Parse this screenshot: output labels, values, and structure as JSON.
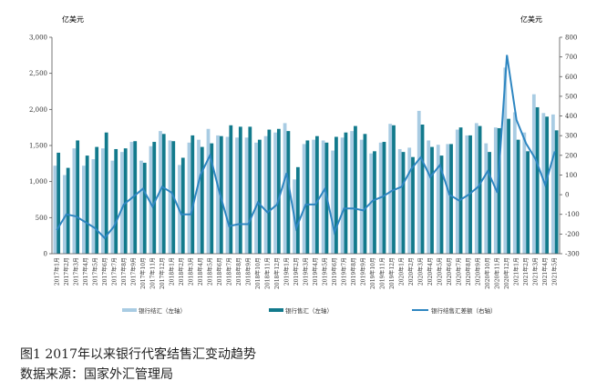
{
  "figure": {
    "caption_line1": "图1   2017年以来银行代客结售汇变动趋势",
    "caption_line2": "数据来源：国家外汇管理局"
  },
  "chart_data": {
    "type": "bar",
    "left_unit": "亿美元",
    "right_unit": "亿美元",
    "ylim_left": [
      0,
      3000
    ],
    "left_ticks": [
      "0",
      "500",
      "1,000",
      "1,500",
      "2,000",
      "2,500",
      "3,000"
    ],
    "ylim_right": [
      -300,
      800
    ],
    "right_ticks": [
      "-300",
      "-200",
      "-100",
      "0",
      "100",
      "200",
      "300",
      "400",
      "500",
      "600",
      "700",
      "800"
    ],
    "grid": false,
    "legend_position": "bottom",
    "colors": {
      "settlement": "#a9cce3",
      "sales": "#127a8c",
      "net": "#2e86c1"
    },
    "categories": [
      "2017年1月",
      "2017年2月",
      "2017年3月",
      "2017年4月",
      "2017年5月",
      "2017年6月",
      "2017年7月",
      "2017年8月",
      "2017年9月",
      "2017年10月",
      "2017年11月",
      "2017年12月",
      "2018年1月",
      "2018年2月",
      "2018年3月",
      "2018年4月",
      "2018年5月",
      "2018年6月",
      "2018年7月",
      "2018年8月",
      "2018年9月",
      "2018年10月",
      "2018年11月",
      "2018年12月",
      "2019年1月",
      "2019年2月",
      "2019年3月",
      "2019年4月",
      "2019年5月",
      "2019年6月",
      "2019年7月",
      "2019年8月",
      "2019年9月",
      "2019年10月",
      "2019年11月",
      "2019年12月",
      "2020年1月",
      "2020年2月",
      "2020年3月",
      "2020年4月",
      "2020年5月",
      "2020年6月",
      "2020年7月",
      "2020年8月",
      "2020年9月",
      "2020年10月",
      "2020年11月",
      "2020年12月",
      "2021年1月",
      "2021年2月",
      "2021年3月",
      "2021年4月",
      "2021年5月"
    ],
    "series": [
      {
        "name": "银行结汇（左轴）",
        "axis": "left",
        "values": [
          1220,
          1090,
          1460,
          1220,
          1310,
          1460,
          1290,
          1410,
          1550,
          1290,
          1490,
          1700,
          1570,
          1230,
          1540,
          1580,
          1730,
          1640,
          1620,
          1610,
          1610,
          1540,
          1630,
          1680,
          1810,
          1030,
          1520,
          1580,
          1570,
          1430,
          1610,
          1700,
          1580,
          1390,
          1540,
          1800,
          1450,
          1470,
          1980,
          1570,
          1510,
          1520,
          1720,
          1640,
          1810,
          1530,
          1750,
          2580,
          1960,
          1680,
          2210,
          1950,
          1930
        ]
      },
      {
        "name": "银行售汇（左轴）",
        "axis": "left",
        "values": [
          1400,
          1190,
          1570,
          1360,
          1480,
          1680,
          1450,
          1460,
          1560,
          1260,
          1550,
          1660,
          1560,
          1330,
          1640,
          1480,
          1530,
          1630,
          1780,
          1760,
          1760,
          1580,
          1720,
          1730,
          1700,
          1200,
          1570,
          1630,
          1540,
          1620,
          1680,
          1770,
          1660,
          1420,
          1550,
          1780,
          1410,
          1340,
          1790,
          1480,
          1360,
          1520,
          1750,
          1640,
          1770,
          1410,
          1740,
          1870,
          1580,
          1420,
          2030,
          1900,
          1710
        ]
      },
      {
        "name": "银行结售汇差额（右轴）",
        "axis": "right",
        "values": [
          -180,
          -100,
          -110,
          -140,
          -170,
          -220,
          -160,
          -50,
          -10,
          30,
          -60,
          40,
          10,
          -100,
          -100,
          100,
          200,
          10,
          -160,
          -150,
          -150,
          -40,
          -90,
          -50,
          110,
          -170,
          -50,
          -50,
          30,
          -190,
          -70,
          -70,
          -80,
          -30,
          -10,
          20,
          40,
          130,
          190,
          90,
          150,
          0,
          -30,
          0,
          40,
          120,
          10,
          710,
          380,
          260,
          180,
          50,
          220
        ]
      }
    ],
    "xlabel": "",
    "ylabel": ""
  }
}
